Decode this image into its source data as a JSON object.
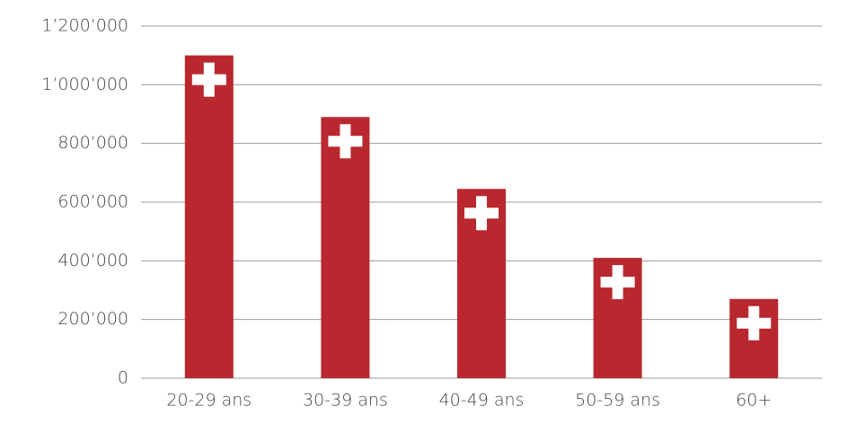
{
  "chart_data": {
    "type": "bar",
    "categories": [
      "20-29 ans",
      "30-39 ans",
      "40-49 ans",
      "50-59 ans",
      "60+"
    ],
    "values": [
      1100000,
      890000,
      645000,
      410000,
      270000
    ],
    "color": "#b9282e",
    "ylim": [
      0,
      1200000
    ],
    "yticks": [
      0,
      {
        "value": 200000,
        "label": "200’000"
      },
      {
        "value": 400000,
        "label": "400’000"
      },
      {
        "value": 600000,
        "label": "600’000"
      },
      {
        "value": 800000,
        "label": "800’000"
      },
      {
        "value": 1000000,
        "label": "1’000’000"
      },
      {
        "value": 1200000,
        "label": "1’200’000"
      }
    ],
    "grid": true
  }
}
